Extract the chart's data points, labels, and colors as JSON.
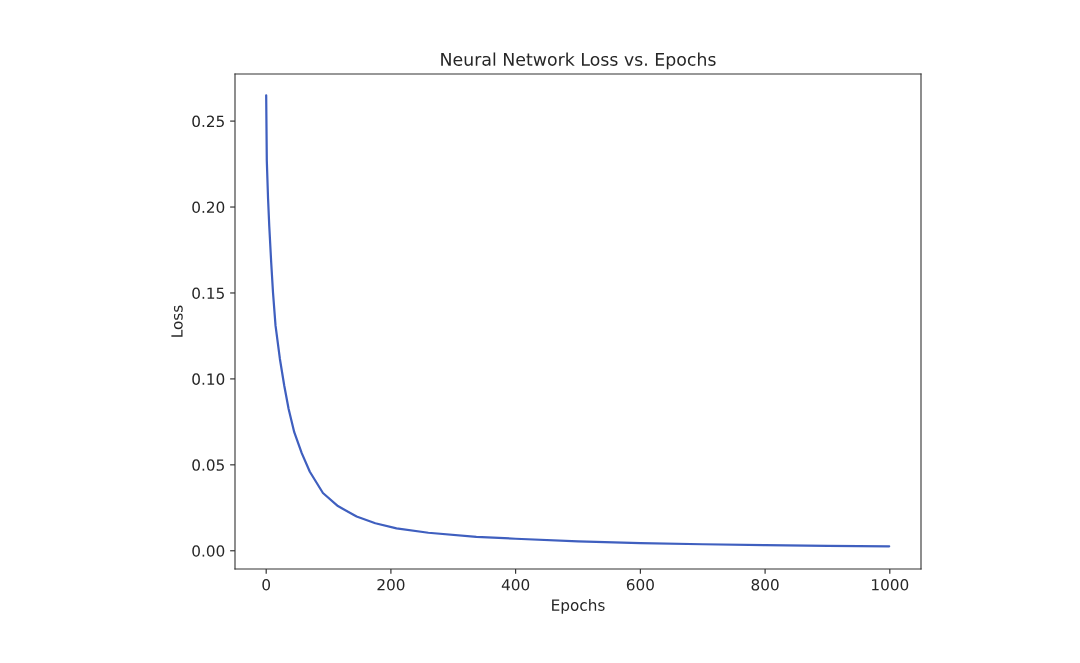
{
  "chart_data": {
    "type": "line",
    "title": "Neural Network Loss vs. Epochs",
    "xlabel": "Epochs",
    "ylabel": "Loss",
    "series": [
      {
        "color": "#3f5fbf",
        "x": [
          0,
          1,
          3,
          5,
          8,
          11,
          15,
          22,
          29,
          36,
          45,
          57,
          70,
          91,
          115,
          145,
          175,
          209,
          260,
          337,
          400,
          500,
          600,
          700,
          800,
          900,
          999
        ],
        "values": [
          0.265,
          0.227,
          0.205,
          0.1885,
          0.168,
          0.15,
          0.131,
          0.1116,
          0.096,
          0.0825,
          0.069,
          0.0568,
          0.046,
          0.0336,
          0.026,
          0.0199,
          0.016,
          0.013,
          0.0105,
          0.0081,
          0.007,
          0.0055,
          0.0045,
          0.0038,
          0.0033,
          0.0029,
          0.0026
        ]
      }
    ],
    "xlim": [
      -50,
      1050
    ],
    "xticks": [
      0,
      200,
      400,
      600,
      800,
      1000
    ],
    "ylim": [
      -0.0106,
      0.2774
    ],
    "yticks": [
      {
        "value": 0,
        "label": "0.00"
      },
      {
        "value": 0.05,
        "label": "0.05"
      },
      {
        "value": 0.1,
        "label": "0.10"
      },
      {
        "value": 0.15,
        "label": "0.15"
      },
      {
        "value": 0.2,
        "label": "0.20"
      },
      {
        "value": 0.25,
        "label": "0.25"
      }
    ],
    "grid": false
  }
}
